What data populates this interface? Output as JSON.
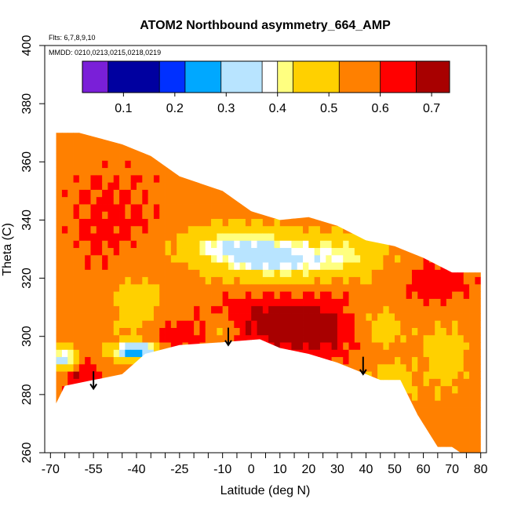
{
  "chart_data": {
    "type": "heatmap",
    "title": "ATOM2 Northbound asymmetry_664_AMP",
    "subtitle_flights": "Flts: 6,7,8,9,10",
    "subtitle_dates": "MMDD: 0210,0213,0215,0218,0219",
    "xlabel": "Latitude (deg N)",
    "ylabel": "Theta (C)",
    "xlim": [
      -72,
      82
    ],
    "ylim": [
      260,
      400
    ],
    "x_ticks": [
      -70,
      -55,
      -40,
      -25,
      -10,
      0,
      10,
      20,
      30,
      40,
      50,
      60,
      70,
      80
    ],
    "x_minor_ticks": [
      -65,
      -60,
      -50,
      -45,
      -35,
      -30,
      -20,
      -15,
      -5,
      5,
      15,
      25,
      35,
      45,
      55,
      65,
      75
    ],
    "y_ticks": [
      260,
      280,
      300,
      320,
      340,
      360,
      380,
      400
    ],
    "colorbar": {
      "range": [
        0.02,
        0.735
      ],
      "ticks": [
        0.1,
        0.2,
        0.3,
        0.4,
        0.5,
        0.6,
        0.7
      ],
      "tick_labels": [
        "0.1",
        "0.2",
        "0.3",
        "0.4",
        "0.5",
        "0.6",
        "0.7"
      ],
      "bin_edges": [
        0.02,
        0.07,
        0.17,
        0.22,
        0.29,
        0.37,
        0.4,
        0.43,
        0.52,
        0.6,
        0.67,
        0.735
      ],
      "colors": [
        "#7a1fd8",
        "#0000a0",
        "#0030ff",
        "#00a8ff",
        "#b8e4ff",
        "#ffffff",
        "#ffff80",
        "#ffd000",
        "#ff8000",
        "#ff0000",
        "#a80000"
      ]
    },
    "domain": {
      "lower_boundary": [
        [
          -68,
          277
        ],
        [
          -65,
          283
        ],
        [
          -55,
          285
        ],
        [
          -45,
          287
        ],
        [
          -37,
          294
        ],
        [
          -25,
          297
        ],
        [
          -10,
          298
        ],
        [
          3,
          299
        ],
        [
          10,
          296
        ],
        [
          20,
          294
        ],
        [
          30,
          291
        ],
        [
          40,
          287
        ],
        [
          45,
          285
        ],
        [
          52,
          285
        ],
        [
          58,
          273
        ],
        [
          65,
          262
        ],
        [
          70,
          262
        ],
        [
          73,
          260
        ],
        [
          80,
          260
        ]
      ],
      "upper_boundary": [
        [
          -68,
          370
        ],
        [
          -60,
          370
        ],
        [
          -45,
          366
        ],
        [
          -35,
          362
        ],
        [
          -25,
          355
        ],
        [
          -10,
          350
        ],
        [
          0,
          343
        ],
        [
          10,
          340
        ],
        [
          20,
          341
        ],
        [
          30,
          338
        ],
        [
          40,
          333
        ],
        [
          50,
          331
        ],
        [
          60,
          327
        ],
        [
          70,
          322
        ],
        [
          80,
          322
        ]
      ]
    },
    "field": {
      "background": 0.56,
      "features": [
        {
          "lat": 10,
          "theta": 305,
          "sx": 14,
          "sy": 8,
          "amp": 0.14
        },
        {
          "lat": 25,
          "theta": 302,
          "sx": 10,
          "sy": 6,
          "amp": 0.1
        },
        {
          "lat": -60,
          "theta": 287,
          "sx": 5,
          "sy": 4,
          "amp": 0.12
        },
        {
          "lat": -30,
          "theta": 300,
          "sx": 10,
          "sy": 5,
          "amp": 0.08
        },
        {
          "lat": 65,
          "theta": 318,
          "sx": 9,
          "sy": 6,
          "amp": 0.08
        },
        {
          "lat": -48,
          "theta": 340,
          "sx": 14,
          "sy": 14,
          "amp": 0.06
        },
        {
          "lat": 10,
          "theta": 326,
          "sx": 15,
          "sy": 6,
          "amp": -0.18
        },
        {
          "lat": -40,
          "theta": 310,
          "sx": 6,
          "sy": 8,
          "amp": -0.13
        },
        {
          "lat": -8,
          "theta": 331,
          "sx": 14,
          "sy": 5,
          "amp": -0.14
        },
        {
          "lat": -40,
          "theta": 295,
          "sx": 6,
          "sy": 2.2,
          "amp": -0.33
        },
        {
          "lat": -65,
          "theta": 292,
          "sx": 3,
          "sy": 3,
          "amp": -0.26
        },
        {
          "lat": 45,
          "theta": 303,
          "sx": 7,
          "sy": 5,
          "amp": -0.1
        },
        {
          "lat": 50,
          "theta": 285,
          "sx": 6,
          "sy": 4,
          "amp": -0.1
        },
        {
          "lat": 68,
          "theta": 293,
          "sx": 5,
          "sy": 8,
          "amp": -0.1
        },
        {
          "lat": 35,
          "theta": 328,
          "sx": 10,
          "sy": 5,
          "amp": -0.1
        },
        {
          "lat": -10,
          "theta": 302,
          "sx": 3,
          "sy": 3,
          "amp": -0.12
        }
      ]
    },
    "arrows": [
      {
        "lat": -55,
        "theta_from": 288,
        "theta_to": 282
      },
      {
        "lat": -8,
        "theta_from": 303,
        "theta_to": 297
      },
      {
        "lat": 39,
        "theta_from": 293,
        "theta_to": 287
      }
    ]
  }
}
